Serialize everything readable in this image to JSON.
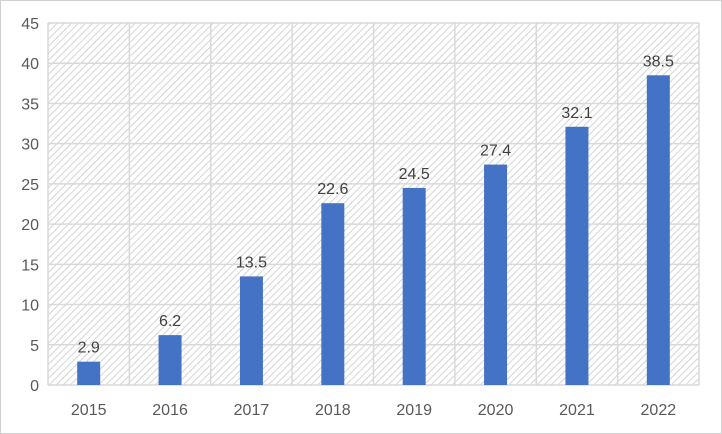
{
  "chart_data": {
    "type": "bar",
    "title": "",
    "xlabel": "",
    "ylabel": "",
    "categories": [
      "2015",
      "2016",
      "2017",
      "2018",
      "2019",
      "2020",
      "2021",
      "2022"
    ],
    "values": [
      2.9,
      6.2,
      13.5,
      22.6,
      24.5,
      27.4,
      32.1,
      38.5
    ],
    "data_labels": [
      "2.9",
      "6.2",
      "13.5",
      "22.6",
      "24.5",
      "27.4",
      "32.1",
      "38.5"
    ],
    "ylim": [
      0,
      45
    ],
    "y_ticks": [
      "0",
      "5",
      "10",
      "15",
      "20",
      "25",
      "30",
      "35",
      "40",
      "45"
    ],
    "grid": true,
    "plot_background": "hatched",
    "legend": "none",
    "colors": {
      "bar": "#4472c4",
      "grid": "#d9d9d9",
      "hatch": "#d4d4d4",
      "axis_text": "#595959",
      "label_text": "#404040"
    }
  }
}
